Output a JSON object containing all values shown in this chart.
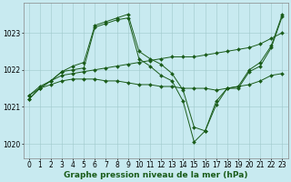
{
  "background_color": "#c8eaf0",
  "grid_color": "#a0c8cc",
  "line_color": "#1a5c1a",
  "marker_color": "#1a5c1a",
  "xlabel": "Graphe pression niveau de la mer (hPa)",
  "xlabel_fontsize": 6.5,
  "tick_fontsize": 5.5,
  "xlim": [
    -0.5,
    23.5
  ],
  "ylim": [
    1019.6,
    1023.8
  ],
  "yticks": [
    1020,
    1021,
    1022,
    1023
  ],
  "xticks": [
    0,
    1,
    2,
    3,
    4,
    5,
    6,
    7,
    8,
    9,
    10,
    11,
    12,
    13,
    14,
    15,
    16,
    17,
    18,
    19,
    20,
    21,
    22,
    23
  ],
  "series": [
    {
      "x": [
        0,
        1,
        2,
        3,
        4,
        5,
        6,
        7,
        8,
        9,
        10,
        11,
        12,
        13,
        14,
        15,
        16,
        17,
        18,
        19,
        20,
        21,
        22,
        23
      ],
      "y": [
        1021.3,
        1021.5,
        1021.6,
        1021.7,
        1021.75,
        1021.75,
        1021.75,
        1021.7,
        1021.7,
        1021.65,
        1021.6,
        1021.6,
        1021.55,
        1021.55,
        1021.5,
        1021.5,
        1021.5,
        1021.45,
        1021.5,
        1021.55,
        1021.6,
        1021.7,
        1021.85,
        1021.9
      ]
    },
    {
      "x": [
        0,
        1,
        2,
        3,
        4,
        5,
        6,
        7,
        8,
        9,
        10,
        11,
        12,
        13,
        14,
        15,
        16,
        17,
        18,
        19,
        20,
        21,
        22,
        23
      ],
      "y": [
        1021.3,
        1021.55,
        1021.7,
        1021.85,
        1021.9,
        1021.95,
        1022.0,
        1022.05,
        1022.1,
        1022.15,
        1022.2,
        1022.25,
        1022.3,
        1022.35,
        1022.35,
        1022.35,
        1022.4,
        1022.45,
        1022.5,
        1022.55,
        1022.6,
        1022.7,
        1022.85,
        1023.0
      ]
    },
    {
      "x": [
        0,
        1,
        2,
        3,
        4,
        5,
        6,
        7,
        8,
        9,
        10,
        11,
        12,
        13,
        14,
        15,
        16,
        17,
        18,
        19,
        20,
        21,
        22,
        23
      ],
      "y": [
        1021.2,
        1021.5,
        1021.7,
        1021.95,
        1022.0,
        1022.05,
        1023.15,
        1023.25,
        1023.35,
        1023.4,
        1022.3,
        1022.1,
        1021.85,
        1021.7,
        1021.15,
        1020.05,
        1020.35,
        1021.05,
        1021.5,
        1021.5,
        1021.95,
        1022.1,
        1022.6,
        1023.45
      ]
    },
    {
      "x": [
        0,
        1,
        2,
        3,
        4,
        5,
        6,
        7,
        8,
        9,
        10,
        11,
        12,
        13,
        14,
        15,
        16,
        17,
        18,
        19,
        20,
        21,
        22,
        23
      ],
      "y": [
        1021.2,
        1021.5,
        1021.7,
        1021.95,
        1022.1,
        1022.2,
        1023.2,
        1023.3,
        1023.4,
        1023.5,
        1022.5,
        1022.3,
        1022.15,
        1021.9,
        1021.45,
        1020.45,
        1020.35,
        1021.15,
        1021.5,
        1021.55,
        1022.0,
        1022.2,
        1022.65,
        1023.5
      ]
    }
  ]
}
